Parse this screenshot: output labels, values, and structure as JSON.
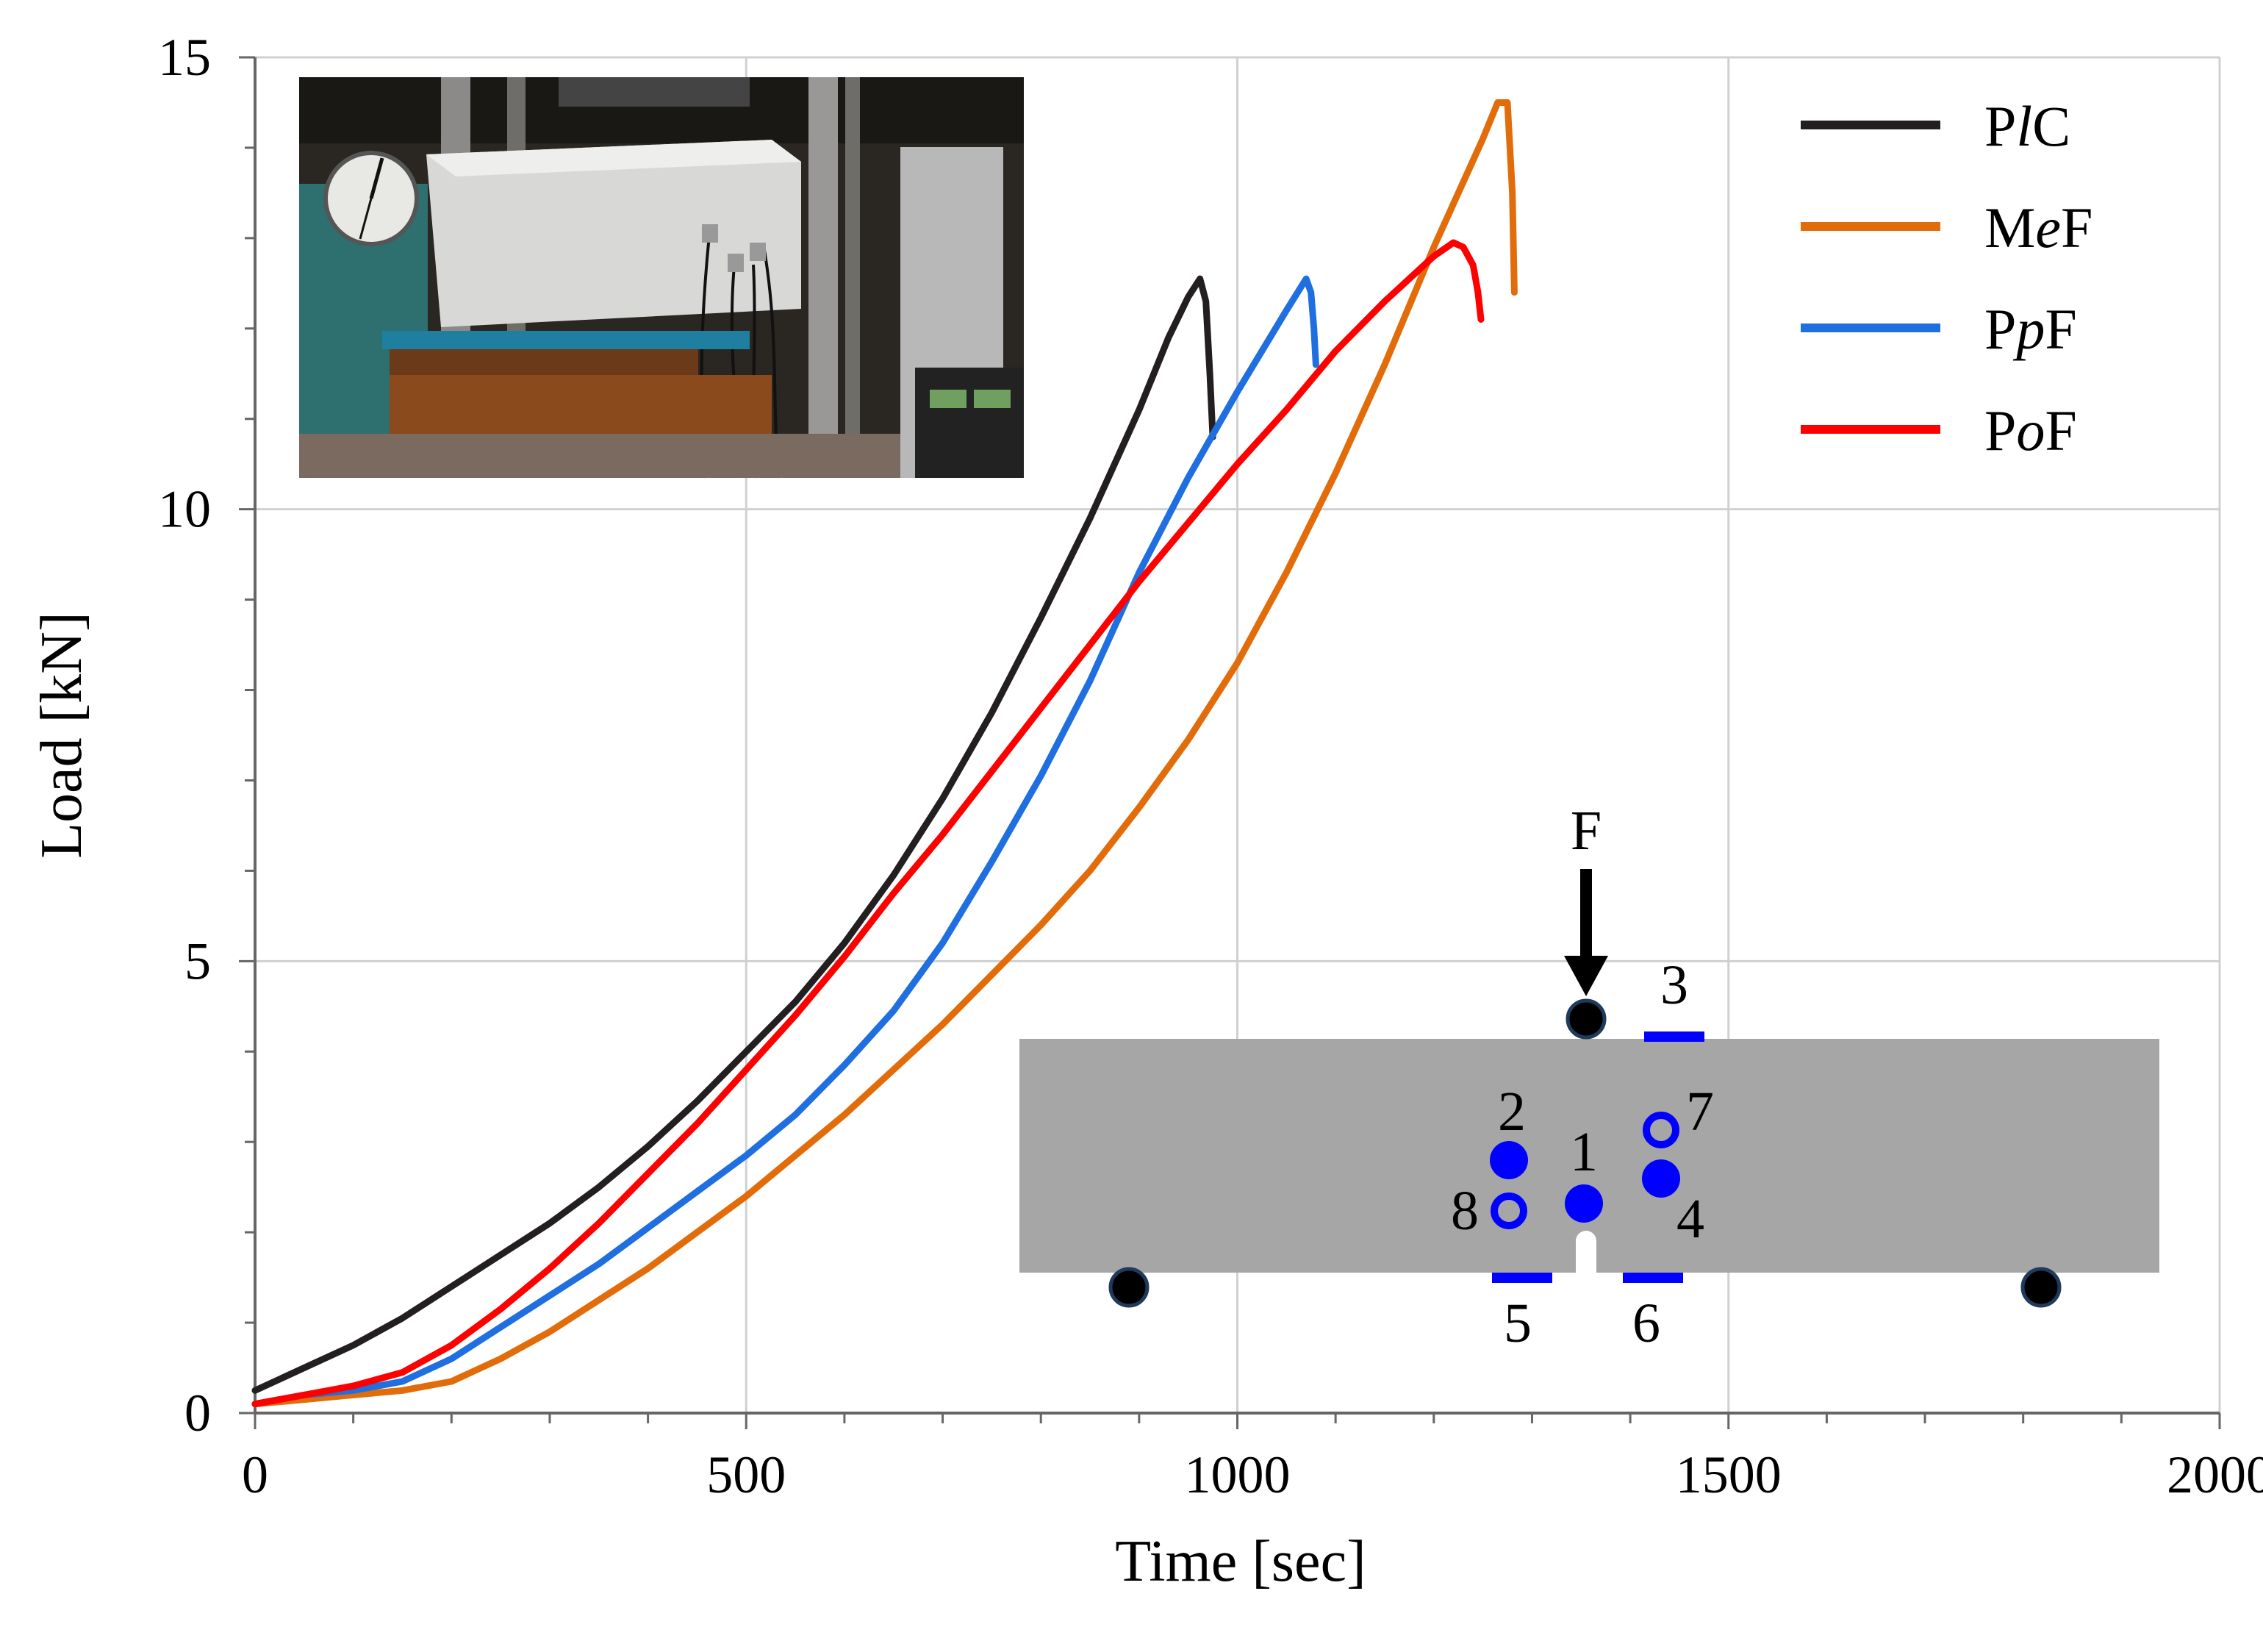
{
  "chart_data": {
    "type": "line",
    "title": "",
    "xlabel": "Time [sec]",
    "ylabel": "Load  [kN]",
    "xlim": [
      0,
      2000
    ],
    "ylim": [
      0,
      15
    ],
    "x_major_ticks": [
      0,
      500,
      1000,
      1500,
      2000
    ],
    "x_tick_labels": [
      "0",
      "500",
      "1000",
      "1500",
      "2000"
    ],
    "y_major_ticks": [
      0,
      5,
      10,
      15
    ],
    "y_tick_labels": [
      "0",
      "5",
      "10",
      "15"
    ],
    "x_minor_step": 100,
    "y_minor_step": 1,
    "grid": true,
    "legend_position": "top-right",
    "series": [
      {
        "name": "PlC",
        "label_parts": [
          "P",
          "l",
          "C"
        ],
        "color": "#231f20",
        "x": [
          0,
          50,
          100,
          150,
          200,
          250,
          300,
          350,
          400,
          450,
          500,
          550,
          600,
          650,
          700,
          750,
          800,
          850,
          900,
          930,
          950,
          962,
          968,
          972,
          975
        ],
        "y": [
          0.25,
          0.5,
          0.75,
          1.05,
          1.4,
          1.75,
          2.1,
          2.5,
          2.95,
          3.45,
          4.0,
          4.55,
          5.2,
          5.95,
          6.8,
          7.75,
          8.8,
          9.9,
          11.1,
          11.9,
          12.35,
          12.55,
          12.3,
          11.5,
          10.8
        ]
      },
      {
        "name": "MeF",
        "label_parts": [
          "M",
          "e",
          "F"
        ],
        "color": "#e36c0a",
        "x": [
          0,
          50,
          100,
          150,
          200,
          250,
          300,
          350,
          400,
          450,
          500,
          550,
          600,
          650,
          700,
          750,
          800,
          850,
          900,
          950,
          1000,
          1050,
          1100,
          1150,
          1200,
          1250,
          1265,
          1275,
          1280,
          1282
        ],
        "y": [
          0.1,
          0.15,
          0.2,
          0.25,
          0.35,
          0.6,
          0.9,
          1.25,
          1.6,
          2.0,
          2.4,
          2.85,
          3.3,
          3.8,
          4.3,
          4.85,
          5.4,
          6.0,
          6.7,
          7.45,
          8.3,
          9.3,
          10.4,
          11.6,
          12.9,
          14.1,
          14.5,
          14.5,
          13.5,
          12.4
        ]
      },
      {
        "name": "PpF",
        "label_parts": [
          "P",
          "p",
          "F"
        ],
        "color": "#1f6fe0",
        "x": [
          0,
          50,
          100,
          150,
          200,
          250,
          300,
          350,
          400,
          450,
          500,
          550,
          600,
          650,
          700,
          750,
          800,
          850,
          900,
          950,
          1000,
          1050,
          1070,
          1075,
          1078,
          1080
        ],
        "y": [
          0.1,
          0.2,
          0.25,
          0.35,
          0.6,
          0.95,
          1.3,
          1.65,
          2.05,
          2.45,
          2.85,
          3.3,
          3.85,
          4.45,
          5.2,
          6.1,
          7.05,
          8.1,
          9.3,
          10.35,
          11.3,
          12.2,
          12.55,
          12.4,
          12.0,
          11.6
        ]
      },
      {
        "name": "PoF",
        "label_parts": [
          "P",
          "o",
          "F"
        ],
        "color": "#ff0000",
        "x": [
          0,
          50,
          100,
          150,
          200,
          250,
          300,
          350,
          400,
          450,
          500,
          550,
          600,
          650,
          700,
          750,
          800,
          850,
          900,
          950,
          1000,
          1050,
          1100,
          1150,
          1200,
          1220,
          1230,
          1240,
          1245,
          1248
        ],
        "y": [
          0.1,
          0.2,
          0.3,
          0.45,
          0.75,
          1.15,
          1.6,
          2.1,
          2.65,
          3.2,
          3.8,
          4.4,
          5.05,
          5.75,
          6.4,
          7.1,
          7.8,
          8.5,
          9.2,
          9.85,
          10.5,
          11.1,
          11.75,
          12.3,
          12.8,
          12.95,
          12.9,
          12.7,
          12.4,
          12.1
        ]
      }
    ]
  },
  "inset_photo": {
    "subject": "concrete beam in three-point bending test rig"
  },
  "beam_diagram": {
    "force_label": "F",
    "sensor_labels": [
      "1",
      "2",
      "3",
      "4",
      "5",
      "6",
      "7",
      "8"
    ],
    "beam_color": "#a6a6a6",
    "sensor_color": "#0000ff",
    "support_color": "#000000"
  }
}
